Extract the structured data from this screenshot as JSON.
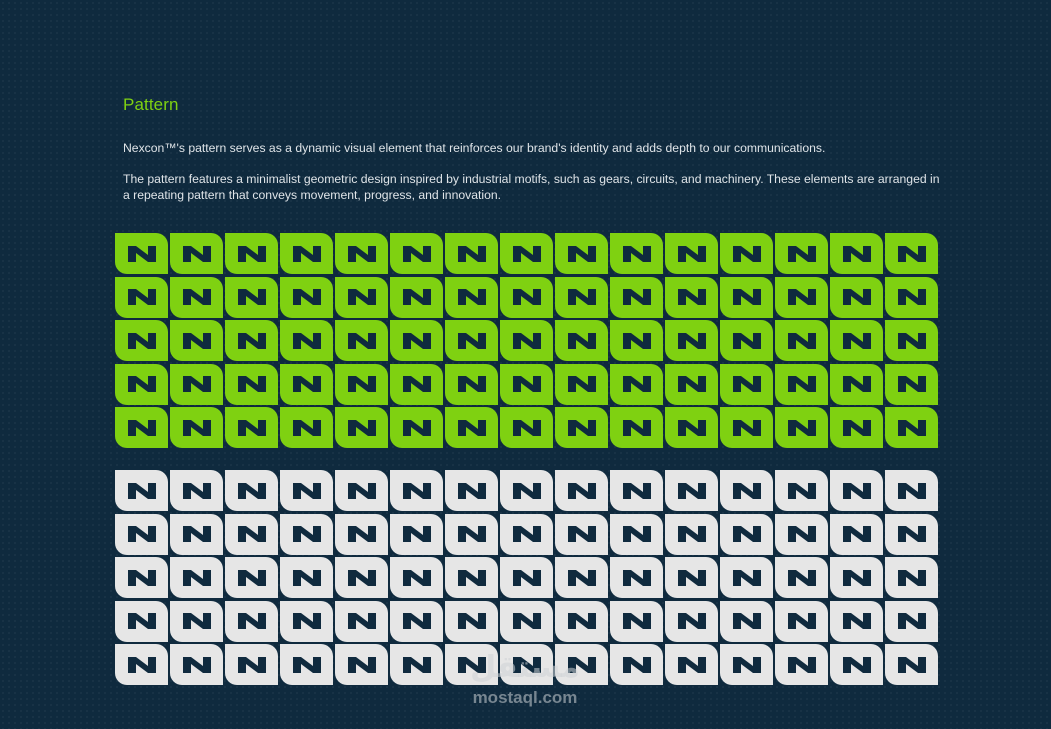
{
  "section": {
    "title": "Pattern",
    "paragraphs": [
      "Nexcon™'s pattern serves as a dynamic visual element that reinforces our brand's identity and adds depth to our communications.",
      "The pattern features a minimalist geometric design inspired by industrial motifs, such as gears, circuits, and machinery. These elements are arranged in a repeating pattern that conveys movement, progress, and innovation."
    ]
  },
  "pattern": {
    "columns": 15,
    "rows": 5,
    "icon": "n-logo-icon",
    "variants": [
      {
        "name": "green",
        "tile_color": "#7fd111",
        "glyph_color": "#0f2a3e"
      },
      {
        "name": "white",
        "tile_color": "#e6e6e6",
        "glyph_color": "#0f2a3e"
      }
    ]
  },
  "colors": {
    "background": "#0f2a3e",
    "accent": "#7fd111",
    "text": "#dfe4e8"
  },
  "watermark": {
    "arabic": "مستقل",
    "latin": "mostaql.com"
  }
}
